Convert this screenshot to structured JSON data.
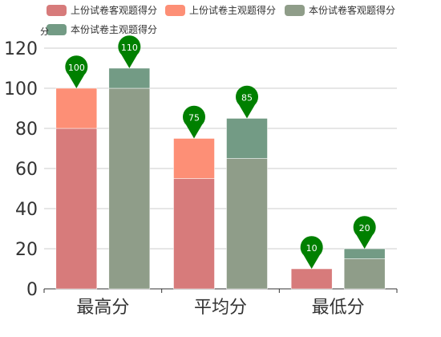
{
  "legend": {
    "items": [
      {
        "label": "上份试卷客观题得分",
        "color": "#d77b7b"
      },
      {
        "label": "上份试卷主观题得分",
        "color": "#fd8f76"
      },
      {
        "label": "本份试卷客观题得分",
        "color": "#8f9d89"
      },
      {
        "label": "本份试卷主观题得分",
        "color": "#739b85"
      }
    ]
  },
  "chart_data": {
    "type": "bar",
    "stacked": true,
    "ylabel": "分",
    "ylim": [
      0,
      120
    ],
    "yticks": [
      0,
      20,
      40,
      60,
      80,
      100,
      120
    ],
    "grid": true,
    "legend_position": "top",
    "categories": [
      "最高分",
      "平均分",
      "最低分"
    ],
    "stacks": [
      {
        "name": "上份试卷",
        "segments": [
          {
            "series": "上份试卷客观题得分",
            "values": [
              80,
              55,
              10
            ],
            "color": "#d77b7b"
          },
          {
            "series": "上份试卷主观题得分",
            "values": [
              20,
              20,
              0
            ],
            "color": "#fd8f76"
          }
        ],
        "max_point_labels": [
          "100",
          "75",
          "10"
        ]
      },
      {
        "name": "本份试卷",
        "segments": [
          {
            "series": "本份试卷客观题得分",
            "values": [
              100,
              65,
              15
            ],
            "color": "#8f9d89"
          },
          {
            "series": "本份试卷主观题得分",
            "values": [
              10,
              20,
              5
            ],
            "color": "#739b85"
          }
        ],
        "max_point_labels": [
          "110",
          "85",
          "20"
        ]
      }
    ],
    "pin_color": "#008000"
  }
}
